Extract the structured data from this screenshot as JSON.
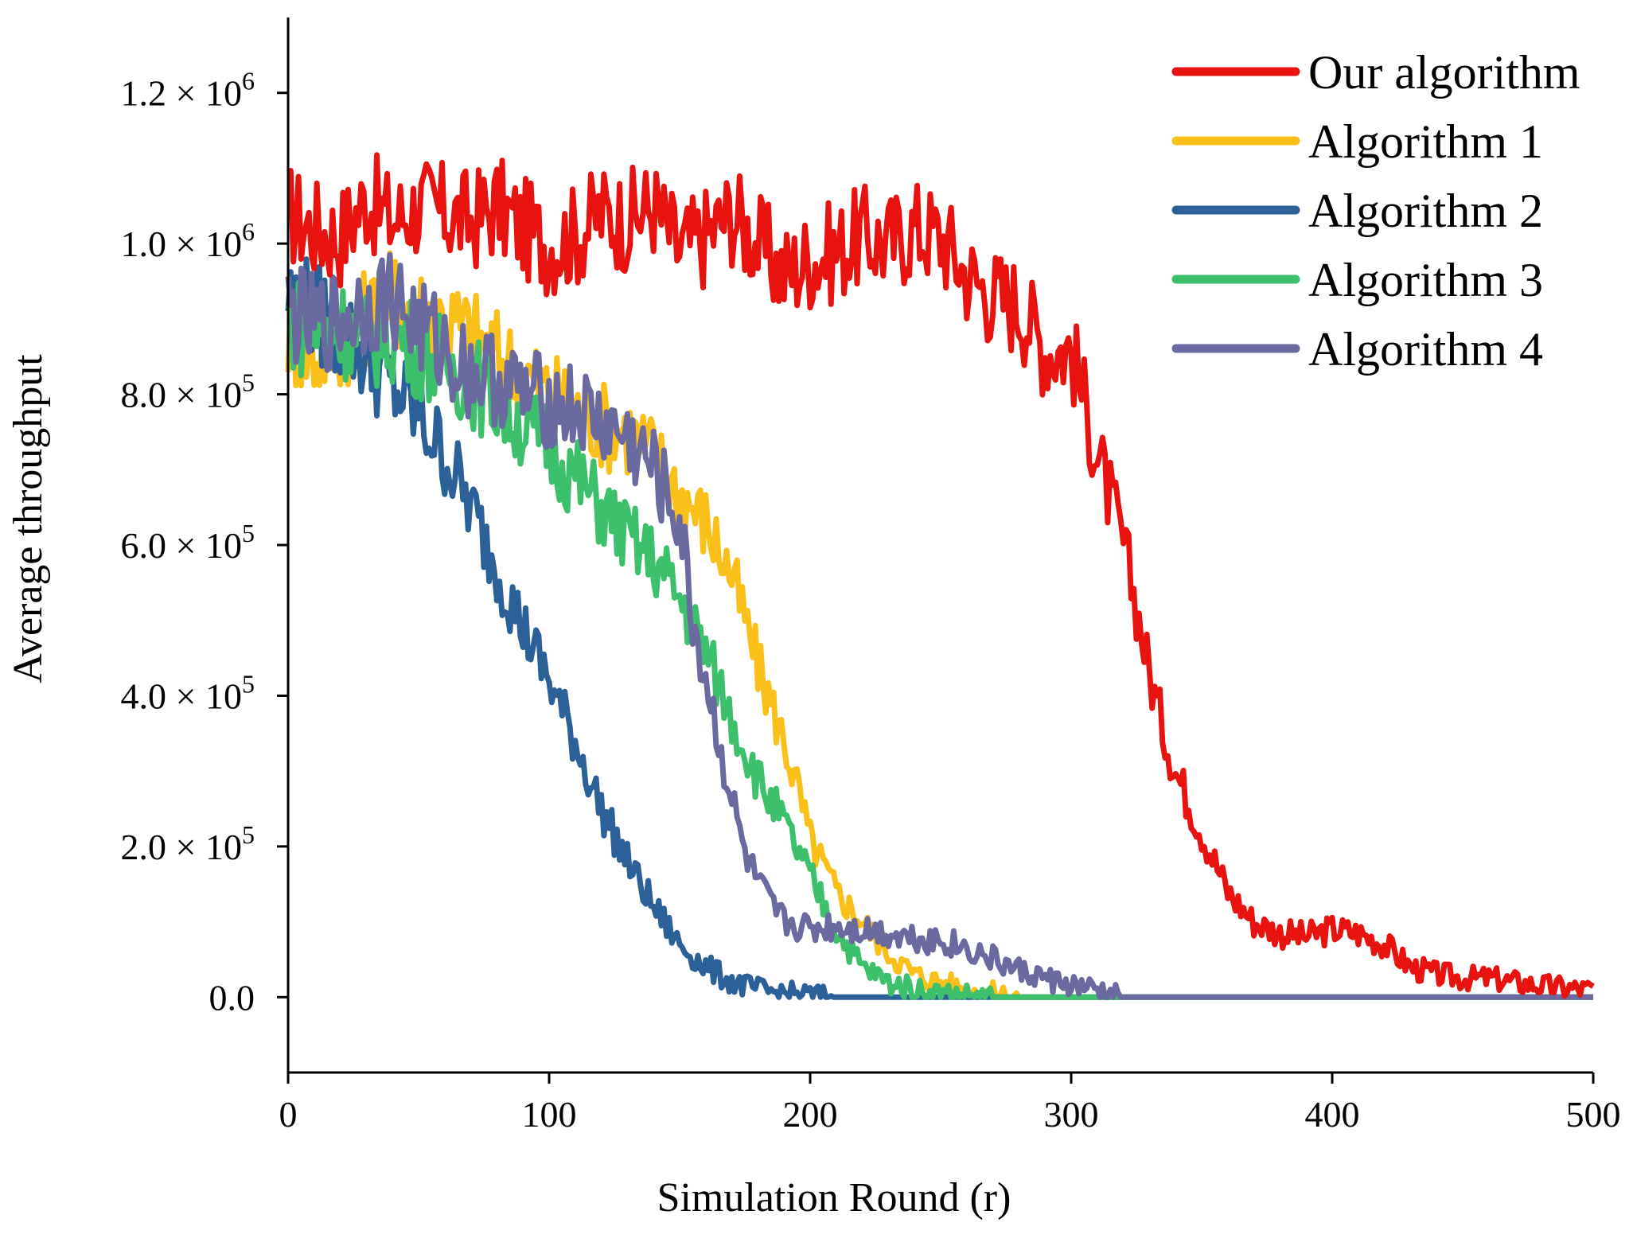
{
  "chart_data": {
    "type": "line",
    "title": "",
    "xlabel": "Simulation Round (r)",
    "ylabel": "Average throughput",
    "xlim": [
      0,
      500
    ],
    "ylim": [
      -100000,
      1300000
    ],
    "x_ticks": [
      0,
      100,
      200,
      300,
      400,
      500
    ],
    "x_tick_labels": [
      "0",
      "100",
      "200",
      "300",
      "400",
      "500"
    ],
    "y_ticks": [
      0,
      200000,
      400000,
      600000,
      800000,
      1000000,
      1200000
    ],
    "y_tick_labels": [
      {
        "mantissa": "0.0",
        "exp": ""
      },
      {
        "mantissa": "2.0 × 10",
        "exp": "5"
      },
      {
        "mantissa": "4.0 × 10",
        "exp": "5"
      },
      {
        "mantissa": "6.0 × 10",
        "exp": "5"
      },
      {
        "mantissa": "8.0 × 10",
        "exp": "5"
      },
      {
        "mantissa": "1.0 × 10",
        "exp": "6"
      },
      {
        "mantissa": "1.2 × 10",
        "exp": "6"
      }
    ],
    "grid": false,
    "legend_position": "top-right",
    "series": [
      {
        "name": "Our algorithm",
        "color": "#e8120f",
        "x": [
          0,
          10,
          20,
          30,
          40,
          50,
          60,
          70,
          80,
          90,
          100,
          110,
          120,
          130,
          140,
          150,
          160,
          170,
          180,
          190,
          200,
          210,
          220,
          230,
          240,
          250,
          260,
          270,
          280,
          290,
          300,
          305,
          310,
          315,
          320,
          325,
          330,
          335,
          340,
          345,
          350,
          355,
          360,
          370,
          380,
          390,
          400,
          410,
          420,
          430,
          440,
          450,
          460,
          470,
          480,
          490,
          500
        ],
        "y": [
          1040000,
          1020000,
          1010000,
          1060000,
          1030000,
          1050000,
          1040000,
          1030000,
          1050000,
          1020000,
          1000000,
          1010000,
          1040000,
          1030000,
          1050000,
          990000,
          1010000,
          1040000,
          1000000,
          960000,
          980000,
          990000,
          1010000,
          1000000,
          1020000,
          1010000,
          960000,
          930000,
          920000,
          860000,
          860000,
          790000,
          720000,
          660000,
          600000,
          520000,
          430000,
          360000,
          300000,
          260000,
          220000,
          180000,
          140000,
          100000,
          85000,
          80000,
          90000,
          85000,
          70000,
          40000,
          30000,
          25000,
          25000,
          20000,
          15000,
          12000,
          10000
        ]
      },
      {
        "name": "Algorithm 1",
        "color": "#fbbf1a",
        "x": [
          0,
          10,
          20,
          30,
          40,
          50,
          60,
          70,
          80,
          90,
          100,
          110,
          120,
          130,
          140,
          150,
          160,
          170,
          175,
          180,
          185,
          190,
          195,
          200,
          210,
          220,
          230,
          240,
          250,
          260,
          270,
          280,
          290,
          300,
          310,
          320,
          350,
          400,
          450,
          500
        ],
        "y": [
          880000,
          850000,
          870000,
          900000,
          930000,
          910000,
          900000,
          880000,
          850000,
          830000,
          800000,
          780000,
          760000,
          750000,
          720000,
          670000,
          630000,
          560000,
          500000,
          440000,
          390000,
          340000,
          280000,
          210000,
          140000,
          100000,
          60000,
          30000,
          20000,
          10000,
          5000,
          0,
          0,
          0,
          0,
          0,
          0,
          0,
          0,
          0
        ]
      },
      {
        "name": "Algorithm 2",
        "color": "#2c6098",
        "x": [
          0,
          10,
          20,
          30,
          40,
          50,
          60,
          70,
          80,
          90,
          100,
          110,
          120,
          130,
          140,
          150,
          160,
          170,
          180,
          190,
          200,
          210,
          220,
          250,
          300,
          350,
          400,
          450,
          500
        ],
        "y": [
          930000,
          910000,
          880000,
          850000,
          810000,
          770000,
          720000,
          650000,
          570000,
          490000,
          420000,
          340000,
          250000,
          180000,
          120000,
          70000,
          40000,
          20000,
          10000,
          5000,
          3000,
          0,
          0,
          0,
          0,
          0,
          0,
          0,
          0
        ]
      },
      {
        "name": "Algorithm 3",
        "color": "#3cc06c",
        "x": [
          0,
          10,
          20,
          30,
          40,
          50,
          60,
          70,
          80,
          90,
          100,
          110,
          120,
          130,
          140,
          150,
          160,
          170,
          180,
          190,
          200,
          210,
          220,
          230,
          240,
          250,
          260,
          270,
          280,
          290,
          300,
          310,
          350,
          400,
          450,
          500
        ],
        "y": [
          900000,
          880000,
          890000,
          870000,
          880000,
          860000,
          840000,
          820000,
          790000,
          760000,
          730000,
          690000,
          650000,
          610000,
          580000,
          530000,
          460000,
          370000,
          290000,
          230000,
          160000,
          90000,
          40000,
          20000,
          10000,
          5000,
          3000,
          0,
          0,
          0,
          0,
          0,
          0,
          0,
          0,
          0
        ]
      },
      {
        "name": "Algorithm 4",
        "color": "#6b6aa0",
        "x": [
          0,
          10,
          20,
          30,
          40,
          50,
          60,
          70,
          80,
          90,
          100,
          110,
          120,
          130,
          140,
          150,
          155,
          160,
          165,
          170,
          175,
          180,
          185,
          190,
          200,
          210,
          220,
          230,
          240,
          250,
          260,
          270,
          280,
          290,
          300,
          310,
          315,
          320,
          350,
          400,
          450,
          500
        ],
        "y": [
          910000,
          890000,
          900000,
          920000,
          930000,
          890000,
          860000,
          830000,
          820000,
          800000,
          790000,
          780000,
          760000,
          740000,
          700000,
          630000,
          500000,
          420000,
          340000,
          260000,
          190000,
          150000,
          120000,
          100000,
          90000,
          95000,
          90000,
          85000,
          80000,
          75000,
          65000,
          50000,
          35000,
          25000,
          15000,
          8000,
          3000,
          0,
          0,
          0,
          0,
          0
        ]
      }
    ]
  }
}
